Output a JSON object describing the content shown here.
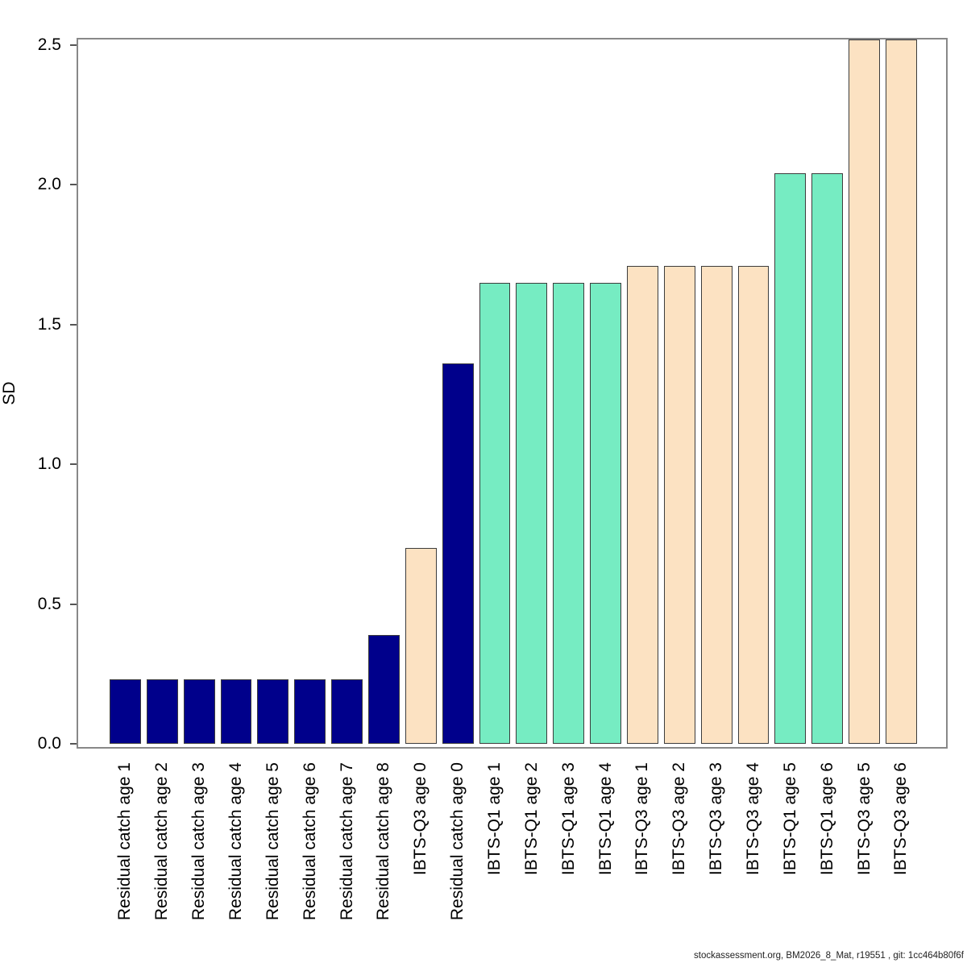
{
  "chart_data": {
    "type": "bar",
    "title": "",
    "xlabel": "",
    "ylabel": "SD",
    "ylim": [
      0,
      2.52
    ],
    "ytick_values": [
      0,
      0.5,
      1,
      1.5,
      2,
      2.5
    ],
    "ytick_labels": [
      "0.0",
      "0.5",
      "1.0",
      "1.5",
      "2.0",
      "2.5"
    ],
    "grid": false,
    "legend_position": "none",
    "bar_orientation": "vertical",
    "categories": [
      "Residual catch age 1",
      "Residual catch age 2",
      "Residual catch age 3",
      "Residual catch age 4",
      "Residual catch age 5",
      "Residual catch age 6",
      "Residual catch age 7",
      "Residual catch age 8",
      "IBTS-Q3 age 0",
      "Residual catch age 0",
      "IBTS-Q1 age 1",
      "IBTS-Q1 age 2",
      "IBTS-Q1 age 3",
      "IBTS-Q1 age 4",
      "IBTS-Q3 age 1",
      "IBTS-Q3 age 2",
      "IBTS-Q3 age 3",
      "IBTS-Q3 age 4",
      "IBTS-Q1 age 5",
      "IBTS-Q1 age 6",
      "IBTS-Q3 age 5",
      "IBTS-Q3 age 6"
    ],
    "values": [
      0.23,
      0.23,
      0.23,
      0.23,
      0.23,
      0.23,
      0.23,
      0.39,
      0.7,
      1.36,
      1.65,
      1.65,
      1.65,
      1.65,
      1.71,
      1.71,
      1.71,
      1.71,
      2.04,
      2.04,
      2.52,
      2.52
    ],
    "groups": [
      "residual-catch",
      "residual-catch",
      "residual-catch",
      "residual-catch",
      "residual-catch",
      "residual-catch",
      "residual-catch",
      "residual-catch",
      "ibts-q3",
      "residual-catch",
      "ibts-q1",
      "ibts-q1",
      "ibts-q1",
      "ibts-q1",
      "ibts-q3",
      "ibts-q3",
      "ibts-q3",
      "ibts-q3",
      "ibts-q1",
      "ibts-q1",
      "ibts-q3",
      "ibts-q3"
    ],
    "palette": {
      "residual-catch": "#00008B",
      "ibts-q1": "#76ECC2",
      "ibts-q3": "#FCE2C2"
    },
    "bar_border_color": "#3c3c3c",
    "axis_box_color": "#888888",
    "text_color": "#000000"
  },
  "footer": {
    "text": "stockassessment.org, BM2026_8_Mat, r19551 , git: 1cc464b80f6f"
  }
}
